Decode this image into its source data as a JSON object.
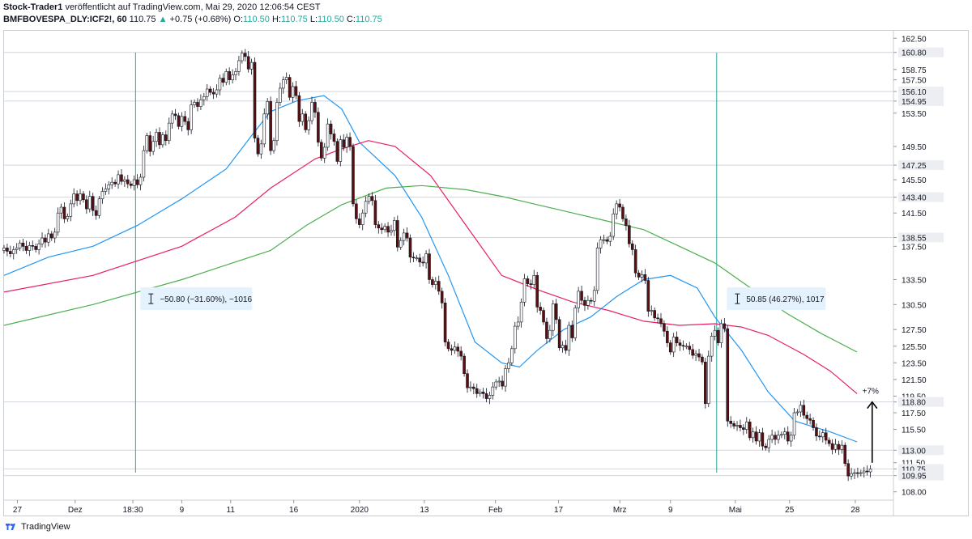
{
  "header": {
    "author": "Stock-Trader1",
    "published": "veröffentlicht auf TradingView.com, Mai 29, 2020 12:06:54 CEST",
    "symbol": "BMFBOVESPA_DLY:ICF2!, 60",
    "last": "110.75",
    "change_arrow": "▲",
    "change": "+0.75 (+0.68%)",
    "o_label": "O:",
    "o_val": "110.50",
    "h_label": "H:",
    "h_val": "110.75",
    "l_label": "L:",
    "l_val": "110.50",
    "c_label": "C:",
    "c_val": "110.75"
  },
  "footer": {
    "brand": "TradingView",
    "logo_icon": "tradingview-logo-icon"
  },
  "colors": {
    "bull": "#ffffff",
    "bear": "#5d0f0f",
    "candle_outline": "#131722",
    "ma_fast": "#2196f3",
    "ma_mid": "#e91e63",
    "ma_slow": "#4caf50",
    "vline": "#26a69a",
    "grid": "#e6e8ec",
    "axis_text": "#131722"
  },
  "chart_data": {
    "type": "candlestick",
    "title": "BMFBOVESPA_DLY:ICF2!, 60",
    "ylim": [
      107.0,
      163.4
    ],
    "y_ticks": [
      "162.50",
      "160.80",
      "158.75",
      "157.50",
      "156.10",
      "154.95",
      "153.50",
      "149.50",
      "147.25",
      "145.50",
      "143.40",
      "141.50",
      "138.55",
      "137.50",
      "133.50",
      "130.50",
      "127.50",
      "125.50",
      "123.50",
      "121.50",
      "119.50",
      "118.80",
      "117.50",
      "115.50",
      "113.00",
      "111.50",
      "110.75",
      "109.95",
      "108.00"
    ],
    "highlighted_levels": [
      "160.80",
      "156.10",
      "154.95",
      "147.25",
      "143.40",
      "138.55",
      "118.80",
      "113.00",
      "110.75",
      "109.95"
    ],
    "x_ticks": [
      "27",
      "Dez",
      "18:30",
      "9",
      "11",
      "16",
      "2020",
      "13",
      "Feb",
      "17",
      "Mrz",
      "9",
      "Mai",
      "25",
      "28"
    ],
    "x_tick_pos": [
      0.015,
      0.08,
      0.145,
      0.2,
      0.255,
      0.326,
      0.4,
      0.473,
      0.553,
      0.624,
      0.693,
      0.75,
      0.823,
      0.884,
      0.958
    ],
    "vertical_markers": [
      0.148,
      0.802
    ],
    "annotations": [
      {
        "label": "−50.80 (−31.60%), −1016",
        "at_x": 0.148,
        "at_y": 131.2
      },
      {
        "label": "50.85 (46.27%), 1017",
        "at_x": 0.808,
        "at_y": 131.2
      },
      {
        "label": "+7%",
        "at_x": 0.977,
        "at_y": 119.8
      }
    ],
    "arrow": {
      "x": 0.977,
      "from": 111.5,
      "to": 118.8
    },
    "closes": [
      137.3,
      136.9,
      136.6,
      137.1,
      137.3,
      137.9,
      137.5,
      137.0,
      137.6,
      137.5,
      137.1,
      137.8,
      138.5,
      138.0,
      139.0,
      138.5,
      139.2,
      141.5,
      142.2,
      140.8,
      141.1,
      142.6,
      143.8,
      143.0,
      143.8,
      143.1,
      142.0,
      143.5,
      141.8,
      141.2,
      143.2,
      144.1,
      144.4,
      144.9,
      145.2,
      145.0,
      146.1,
      145.3,
      145.5,
      145.0,
      144.8,
      145.5,
      144.9,
      145.8,
      149.0,
      150.8,
      148.9,
      150.1,
      151.2,
      149.7,
      150.9,
      150.2,
      152.3,
      153.4,
      153.2,
      151.9,
      153.1,
      152.5,
      151.5,
      154.5,
      154.8,
      154.3,
      155.1,
      155.5,
      156.4,
      156.0,
      155.8,
      156.3,
      157.7,
      157.2,
      158.5,
      157.5,
      158.1,
      158.5,
      159.8,
      160.7,
      160.3,
      158.8,
      159.6,
      150.5,
      148.6,
      149.8,
      153.4,
      154.9,
      149.0,
      150.2,
      154.8,
      156.5,
      157.5,
      157.8,
      155.4,
      156.7,
      155.6,
      152.5,
      153.4,
      151.5,
      152.6,
      154.8,
      153.6,
      150.0,
      148.1,
      149.4,
      152.2,
      151.0,
      150.1,
      147.7,
      150.3,
      149.4,
      150.6,
      149.5,
      142.6,
      140.8,
      140.1,
      141.5,
      142.9,
      143.5,
      143.0,
      140.1,
      139.7,
      139.5,
      139.9,
      139.2,
      139.4,
      140.6,
      137.4,
      138.2,
      139.1,
      138.5,
      136.2,
      136.1,
      136.1,
      135.6,
      135.5,
      136.6,
      133.5,
      132.9,
      133.3,
      132.1,
      130.7,
      126.0,
      125.2,
      125.0,
      125.4,
      124.9,
      124.3,
      122.2,
      120.5,
      120.6,
      120.4,
      119.8,
      120.0,
      119.8,
      119.2,
      119.6,
      120.6,
      121.2,
      121.3,
      120.7,
      122.8,
      123.5,
      125.2,
      127.9,
      128.4,
      130.8,
      133.6,
      133.0,
      132.9,
      134.0,
      130.2,
      129.8,
      128.4,
      126.4,
      127.4,
      130.6,
      128.7,
      125.3,
      125.6,
      125.0,
      128.0,
      126.5,
      130.1,
      132.1,
      131.0,
      130.4,
      131.0,
      130.9,
      132.2,
      137.3,
      138.3,
      138.3,
      138.1,
      138.7,
      141.4,
      142.6,
      142.2,
      140.8,
      140.0,
      137.8,
      137.1,
      134.3,
      133.8,
      134.1,
      133.4,
      129.7,
      129.8,
      128.9,
      128.8,
      128.2,
      127.3,
      125.9,
      124.8,
      126.6,
      125.9,
      125.6,
      125.5,
      125.5,
      125.1,
      124.4,
      124.6,
      124.2,
      123.6,
      118.6,
      124.3,
      126.7,
      127.4,
      125.9,
      128.2,
      127.6,
      116.5,
      116.2,
      115.9,
      116.0,
      115.7,
      115.5,
      116.4,
      114.5,
      115.2,
      114.1,
      115.1,
      113.5,
      113.3,
      114.3,
      114.8,
      114.3,
      114.8,
      114.9,
      115.2,
      114.1,
      114.8,
      117.5,
      117.6,
      118.4,
      117.2,
      116.8,
      116.6,
      115.7,
      114.7,
      114.6,
      115.1,
      114.2,
      113.8,
      113.1,
      113.7,
      113.1,
      113.6,
      111.4,
      109.9,
      110.2,
      110.3,
      110.2,
      110.3,
      110.5,
      110.4,
      110.75
    ],
    "series": [
      {
        "name": "MA fast (blue)",
        "points": [
          [
            0,
            134.0
          ],
          [
            0.05,
            136.2
          ],
          [
            0.1,
            137.5
          ],
          [
            0.15,
            140.0
          ],
          [
            0.2,
            143.2
          ],
          [
            0.25,
            146.8
          ],
          [
            0.28,
            151.0
          ],
          [
            0.3,
            153.7
          ],
          [
            0.33,
            155.0
          ],
          [
            0.36,
            155.6
          ],
          [
            0.38,
            154.0
          ],
          [
            0.4,
            150.0
          ],
          [
            0.44,
            146.0
          ],
          [
            0.47,
            141.0
          ],
          [
            0.5,
            134.0
          ],
          [
            0.53,
            126.0
          ],
          [
            0.56,
            123.5
          ],
          [
            0.58,
            123.0
          ],
          [
            0.6,
            125.0
          ],
          [
            0.63,
            127.5
          ],
          [
            0.66,
            129.0
          ],
          [
            0.69,
            131.5
          ],
          [
            0.72,
            133.5
          ],
          [
            0.75,
            134.0
          ],
          [
            0.78,
            132.5
          ],
          [
            0.8,
            129.0
          ],
          [
            0.83,
            125.0
          ],
          [
            0.86,
            120.0
          ],
          [
            0.89,
            116.5
          ],
          [
            0.93,
            115.2
          ],
          [
            0.96,
            114.0
          ]
        ]
      },
      {
        "name": "MA mid (red)",
        "points": [
          [
            0,
            132.0
          ],
          [
            0.1,
            134.0
          ],
          [
            0.2,
            137.5
          ],
          [
            0.26,
            141.0
          ],
          [
            0.3,
            144.5
          ],
          [
            0.35,
            148.0
          ],
          [
            0.38,
            149.2
          ],
          [
            0.41,
            150.2
          ],
          [
            0.44,
            149.5
          ],
          [
            0.48,
            146.0
          ],
          [
            0.52,
            140.0
          ],
          [
            0.56,
            134.0
          ],
          [
            0.6,
            132.3
          ],
          [
            0.64,
            130.8
          ],
          [
            0.68,
            129.8
          ],
          [
            0.72,
            128.5
          ],
          [
            0.76,
            128.0
          ],
          [
            0.8,
            128.2
          ],
          [
            0.83,
            127.8
          ],
          [
            0.86,
            126.8
          ],
          [
            0.9,
            124.5
          ],
          [
            0.93,
            122.5
          ],
          [
            0.96,
            119.8
          ]
        ]
      },
      {
        "name": "MA slow (green)",
        "points": [
          [
            0,
            128.0
          ],
          [
            0.1,
            130.5
          ],
          [
            0.2,
            133.5
          ],
          [
            0.3,
            137.0
          ],
          [
            0.34,
            140.0
          ],
          [
            0.38,
            142.5
          ],
          [
            0.43,
            144.5
          ],
          [
            0.47,
            144.8
          ],
          [
            0.52,
            144.3
          ],
          [
            0.56,
            143.5
          ],
          [
            0.6,
            142.5
          ],
          [
            0.64,
            141.5
          ],
          [
            0.68,
            140.5
          ],
          [
            0.72,
            139.5
          ],
          [
            0.76,
            137.5
          ],
          [
            0.8,
            135.5
          ],
          [
            0.84,
            132.5
          ],
          [
            0.88,
            129.5
          ],
          [
            0.92,
            127.0
          ],
          [
            0.96,
            124.8
          ]
        ]
      }
    ]
  }
}
